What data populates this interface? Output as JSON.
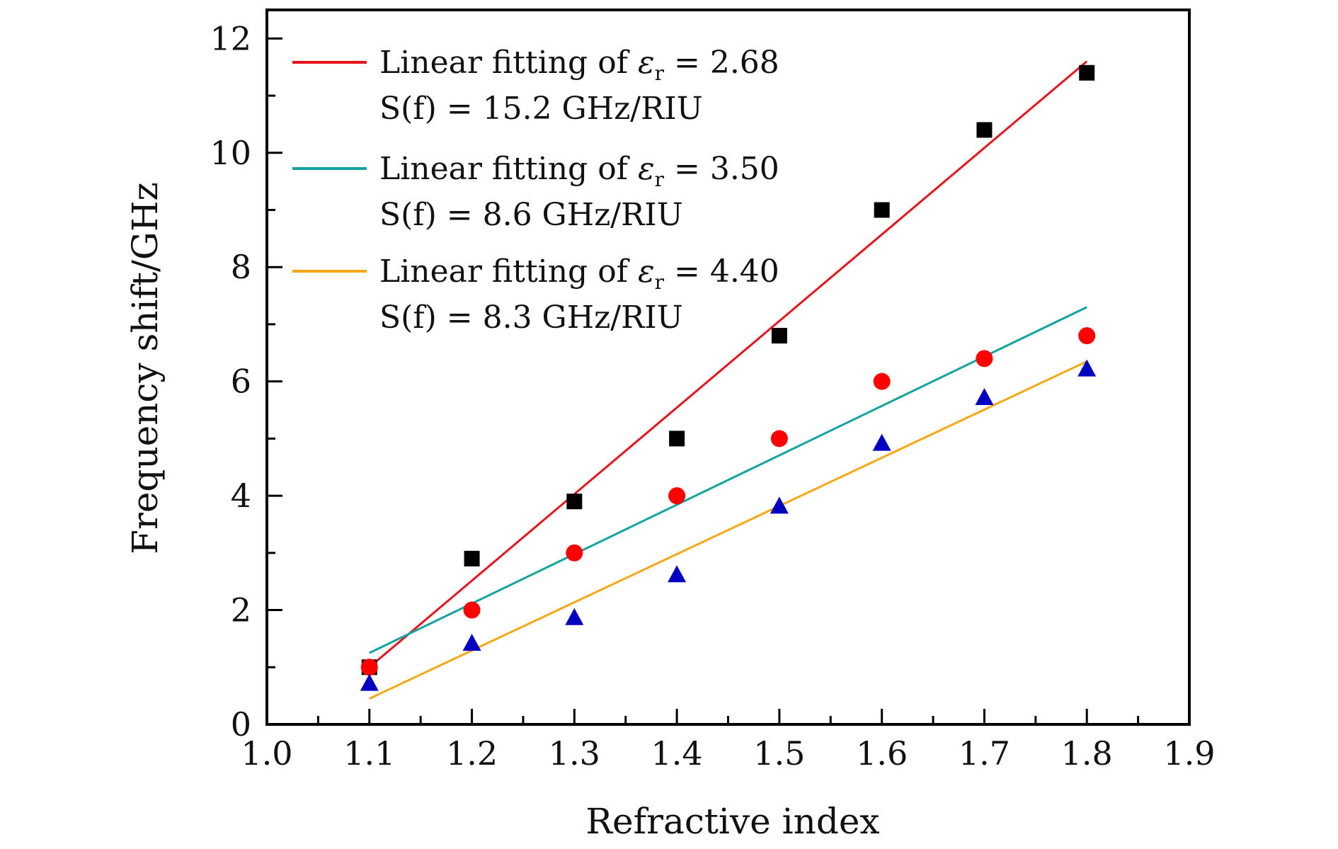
{
  "chart_data": {
    "type": "scatter",
    "xlabel": "Refractive index",
    "ylabel": "Frequency shift/GHz",
    "xlim": [
      1.0,
      1.9
    ],
    "ylim": [
      0,
      12.5
    ],
    "xticks": [
      "1.0",
      "1.1",
      "1.2",
      "1.3",
      "1.4",
      "1.5",
      "1.6",
      "1.7",
      "1.8",
      "1.9"
    ],
    "yticks": [
      "0",
      "2",
      "4",
      "6",
      "8",
      "10",
      "12"
    ],
    "grid": false,
    "legend_position": "top-left",
    "series": [
      {
        "marker": "square",
        "color": "#000000",
        "x": [
          1.1,
          1.2,
          1.3,
          1.4,
          1.5,
          1.6,
          1.7,
          1.8
        ],
        "y": [
          1.0,
          2.9,
          3.9,
          5.0,
          6.8,
          9.0,
          10.4,
          11.4
        ]
      },
      {
        "marker": "circle",
        "color": "#ff0000",
        "x": [
          1.1,
          1.2,
          1.3,
          1.4,
          1.5,
          1.6,
          1.7,
          1.8
        ],
        "y": [
          1.0,
          2.0,
          3.0,
          4.0,
          5.0,
          6.0,
          6.4,
          6.8
        ]
      },
      {
        "marker": "triangle",
        "color": "#0000c0",
        "x": [
          1.1,
          1.2,
          1.3,
          1.4,
          1.5,
          1.6,
          1.7,
          1.8
        ],
        "y": [
          0.7,
          1.4,
          1.85,
          2.6,
          3.8,
          4.9,
          5.7,
          6.2
        ]
      }
    ],
    "fits": [
      {
        "label": "Linear fitting of εr = 2.68",
        "label_prefix": "Linear fitting of ",
        "symbol": "ε",
        "subscript": "r",
        "equals_value": " = 2.68",
        "sensitivity": "S(f) = 15.2 GHz/RIU",
        "color": "#e8141c",
        "x": [
          1.1,
          1.8
        ],
        "y": [
          1.0,
          11.6
        ]
      },
      {
        "label": "Linear fitting of εr = 3.50",
        "label_prefix": "Linear fitting of ",
        "symbol": "ε",
        "subscript": "r",
        "equals_value": " = 3.50",
        "sensitivity": "S(f) = 8.6 GHz/RIU",
        "color": "#13a4a0",
        "x": [
          1.1,
          1.8
        ],
        "y": [
          1.25,
          7.3
        ]
      },
      {
        "label": "Linear fitting of εr = 4.40",
        "label_prefix": "Linear fitting of ",
        "symbol": "ε",
        "subscript": "r",
        "equals_value": " = 4.40",
        "sensitivity": "S(f) = 8.3 GHz/RIU",
        "color": "#f5a813",
        "x": [
          1.1,
          1.8
        ],
        "y": [
          0.45,
          6.35
        ]
      }
    ]
  }
}
